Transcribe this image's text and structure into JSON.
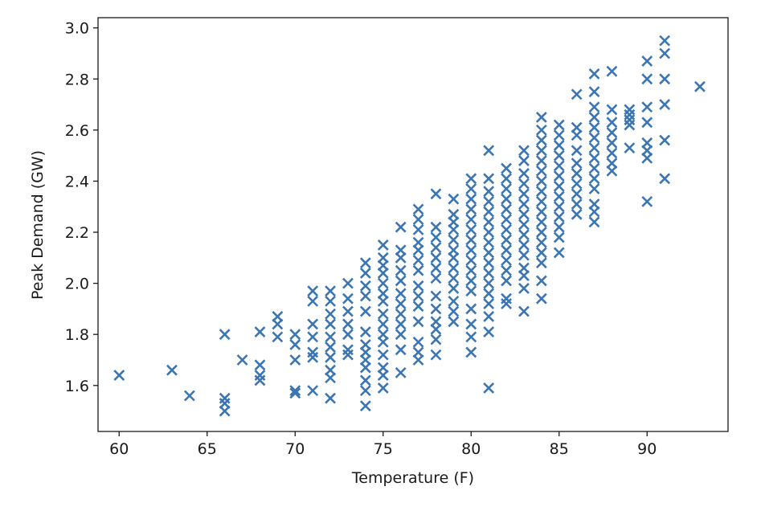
{
  "chart_data": {
    "type": "scatter",
    "title": "",
    "xlabel": "Temperature (F)",
    "ylabel": "Peak Demand (GW)",
    "xlim": [
      58.8,
      94.6
    ],
    "ylim": [
      1.42,
      3.04
    ],
    "xticks": [
      60,
      65,
      70,
      75,
      80,
      85,
      90
    ],
    "yticks": [
      1.6,
      1.8,
      2.0,
      2.2,
      2.4,
      2.6,
      2.8,
      3.0
    ],
    "xtick_labels": [
      "60",
      "65",
      "70",
      "75",
      "80",
      "85",
      "90"
    ],
    "ytick_labels": [
      "1.6",
      "1.8",
      "2.0",
      "2.2",
      "2.4",
      "2.6",
      "2.8",
      "3.0"
    ],
    "marker": "x",
    "color": "#3b76b3",
    "grid": false,
    "series": [
      {
        "points": [
          [
            60,
            1.64
          ],
          [
            63,
            1.66
          ],
          [
            64,
            1.56
          ],
          [
            66,
            1.8
          ],
          [
            66,
            1.55
          ],
          [
            66,
            1.53
          ],
          [
            66,
            1.5
          ],
          [
            67,
            1.7
          ],
          [
            68,
            1.81
          ],
          [
            68,
            1.68
          ],
          [
            68,
            1.64
          ],
          [
            68,
            1.62
          ],
          [
            69,
            1.87
          ],
          [
            69,
            1.84
          ],
          [
            69,
            1.79
          ],
          [
            70,
            1.8
          ],
          [
            70,
            1.76
          ],
          [
            70,
            1.7
          ],
          [
            70,
            1.58
          ],
          [
            70,
            1.57
          ],
          [
            71,
            1.97
          ],
          [
            71,
            1.93
          ],
          [
            71,
            1.84
          ],
          [
            71,
            1.79
          ],
          [
            71,
            1.73
          ],
          [
            71,
            1.71
          ],
          [
            71,
            1.58
          ],
          [
            72,
            1.97
          ],
          [
            72,
            1.93
          ],
          [
            72,
            1.88
          ],
          [
            72,
            1.84
          ],
          [
            72,
            1.79
          ],
          [
            72,
            1.75
          ],
          [
            72,
            1.71
          ],
          [
            72,
            1.66
          ],
          [
            72,
            1.63
          ],
          [
            72,
            1.55
          ],
          [
            73,
            2.0
          ],
          [
            73,
            1.94
          ],
          [
            73,
            1.89
          ],
          [
            73,
            1.84
          ],
          [
            73,
            1.8
          ],
          [
            73,
            1.74
          ],
          [
            73,
            1.72
          ],
          [
            74,
            2.08
          ],
          [
            74,
            2.04
          ],
          [
            74,
            1.99
          ],
          [
            74,
            1.95
          ],
          [
            74,
            1.89
          ],
          [
            74,
            1.81
          ],
          [
            74,
            1.76
          ],
          [
            74,
            1.73
          ],
          [
            74,
            1.7
          ],
          [
            74,
            1.67
          ],
          [
            74,
            1.62
          ],
          [
            74,
            1.58
          ],
          [
            74,
            1.52
          ],
          [
            75,
            2.15
          ],
          [
            75,
            2.1
          ],
          [
            75,
            2.07
          ],
          [
            75,
            2.04
          ],
          [
            75,
            2.0
          ],
          [
            75,
            1.96
          ],
          [
            75,
            1.93
          ],
          [
            75,
            1.88
          ],
          [
            75,
            1.84
          ],
          [
            75,
            1.8
          ],
          [
            75,
            1.77
          ],
          [
            75,
            1.72
          ],
          [
            75,
            1.67
          ],
          [
            75,
            1.64
          ],
          [
            75,
            1.59
          ],
          [
            76,
            2.22
          ],
          [
            76,
            2.13
          ],
          [
            76,
            2.1
          ],
          [
            76,
            2.05
          ],
          [
            76,
            2.01
          ],
          [
            76,
            1.96
          ],
          [
            76,
            1.92
          ],
          [
            76,
            1.88
          ],
          [
            76,
            1.84
          ],
          [
            76,
            1.8
          ],
          [
            76,
            1.74
          ],
          [
            76,
            1.65
          ],
          [
            77,
            2.29
          ],
          [
            77,
            2.25
          ],
          [
            77,
            2.21
          ],
          [
            77,
            2.16
          ],
          [
            77,
            2.13
          ],
          [
            77,
            2.09
          ],
          [
            77,
            2.05
          ],
          [
            77,
            1.99
          ],
          [
            77,
            1.95
          ],
          [
            77,
            1.91
          ],
          [
            77,
            1.85
          ],
          [
            77,
            1.77
          ],
          [
            77,
            1.73
          ],
          [
            77,
            1.7
          ],
          [
            78,
            2.35
          ],
          [
            78,
            2.22
          ],
          [
            78,
            2.18
          ],
          [
            78,
            2.14
          ],
          [
            78,
            2.1
          ],
          [
            78,
            2.06
          ],
          [
            78,
            2.02
          ],
          [
            78,
            1.95
          ],
          [
            78,
            1.9
          ],
          [
            78,
            1.85
          ],
          [
            78,
            1.82
          ],
          [
            78,
            1.78
          ],
          [
            78,
            1.72
          ],
          [
            79,
            2.33
          ],
          [
            79,
            2.27
          ],
          [
            79,
            2.24
          ],
          [
            79,
            2.21
          ],
          [
            79,
            2.17
          ],
          [
            79,
            2.13
          ],
          [
            79,
            2.1
          ],
          [
            79,
            2.06
          ],
          [
            79,
            2.02
          ],
          [
            79,
            1.98
          ],
          [
            79,
            1.93
          ],
          [
            79,
            1.89
          ],
          [
            79,
            1.85
          ],
          [
            80,
            2.41
          ],
          [
            80,
            2.37
          ],
          [
            80,
            2.33
          ],
          [
            80,
            2.29
          ],
          [
            80,
            2.25
          ],
          [
            80,
            2.21
          ],
          [
            80,
            2.17
          ],
          [
            80,
            2.13
          ],
          [
            80,
            2.09
          ],
          [
            80,
            2.05
          ],
          [
            80,
            2.01
          ],
          [
            80,
            1.97
          ],
          [
            80,
            1.9
          ],
          [
            80,
            1.84
          ],
          [
            80,
            1.79
          ],
          [
            80,
            1.73
          ],
          [
            81,
            2.52
          ],
          [
            81,
            2.41
          ],
          [
            81,
            2.36
          ],
          [
            81,
            2.32
          ],
          [
            81,
            2.28
          ],
          [
            81,
            2.24
          ],
          [
            81,
            2.2
          ],
          [
            81,
            2.16
          ],
          [
            81,
            2.12
          ],
          [
            81,
            2.08
          ],
          [
            81,
            2.04
          ],
          [
            81,
            2.0
          ],
          [
            81,
            1.96
          ],
          [
            81,
            1.92
          ],
          [
            81,
            1.87
          ],
          [
            81,
            1.81
          ],
          [
            81,
            1.59
          ],
          [
            82,
            2.45
          ],
          [
            82,
            2.41
          ],
          [
            82,
            2.37
          ],
          [
            82,
            2.33
          ],
          [
            82,
            2.29
          ],
          [
            82,
            2.25
          ],
          [
            82,
            2.21
          ],
          [
            82,
            2.17
          ],
          [
            82,
            2.13
          ],
          [
            82,
            2.09
          ],
          [
            82,
            2.05
          ],
          [
            82,
            2.01
          ],
          [
            82,
            1.94
          ],
          [
            82,
            1.92
          ],
          [
            83,
            2.52
          ],
          [
            83,
            2.48
          ],
          [
            83,
            2.43
          ],
          [
            83,
            2.39
          ],
          [
            83,
            2.35
          ],
          [
            83,
            2.31
          ],
          [
            83,
            2.27
          ],
          [
            83,
            2.23
          ],
          [
            83,
            2.19
          ],
          [
            83,
            2.15
          ],
          [
            83,
            2.11
          ],
          [
            83,
            2.06
          ],
          [
            83,
            2.03
          ],
          [
            83,
            1.98
          ],
          [
            83,
            1.89
          ],
          [
            84,
            2.65
          ],
          [
            84,
            2.6
          ],
          [
            84,
            2.56
          ],
          [
            84,
            2.52
          ],
          [
            84,
            2.48
          ],
          [
            84,
            2.44
          ],
          [
            84,
            2.4
          ],
          [
            84,
            2.36
          ],
          [
            84,
            2.32
          ],
          [
            84,
            2.28
          ],
          [
            84,
            2.24
          ],
          [
            84,
            2.2
          ],
          [
            84,
            2.16
          ],
          [
            84,
            2.12
          ],
          [
            84,
            2.08
          ],
          [
            84,
            2.01
          ],
          [
            84,
            1.94
          ],
          [
            85,
            2.62
          ],
          [
            85,
            2.58
          ],
          [
            85,
            2.54
          ],
          [
            85,
            2.5
          ],
          [
            85,
            2.46
          ],
          [
            85,
            2.42
          ],
          [
            85,
            2.38
          ],
          [
            85,
            2.34
          ],
          [
            85,
            2.3
          ],
          [
            85,
            2.26
          ],
          [
            85,
            2.22
          ],
          [
            85,
            2.18
          ],
          [
            85,
            2.12
          ],
          [
            86,
            2.74
          ],
          [
            86,
            2.61
          ],
          [
            86,
            2.58
          ],
          [
            86,
            2.52
          ],
          [
            86,
            2.47
          ],
          [
            86,
            2.43
          ],
          [
            86,
            2.39
          ],
          [
            86,
            2.35
          ],
          [
            86,
            2.31
          ],
          [
            86,
            2.27
          ],
          [
            87,
            2.82
          ],
          [
            87,
            2.75
          ],
          [
            87,
            2.69
          ],
          [
            87,
            2.65
          ],
          [
            87,
            2.61
          ],
          [
            87,
            2.57
          ],
          [
            87,
            2.53
          ],
          [
            87,
            2.49
          ],
          [
            87,
            2.45
          ],
          [
            87,
            2.41
          ],
          [
            87,
            2.37
          ],
          [
            87,
            2.31
          ],
          [
            87,
            2.28
          ],
          [
            87,
            2.24
          ],
          [
            88,
            2.83
          ],
          [
            88,
            2.68
          ],
          [
            88,
            2.63
          ],
          [
            88,
            2.59
          ],
          [
            88,
            2.55
          ],
          [
            88,
            2.51
          ],
          [
            88,
            2.47
          ],
          [
            88,
            2.44
          ],
          [
            89,
            2.68
          ],
          [
            89,
            2.66
          ],
          [
            89,
            2.64
          ],
          [
            89,
            2.62
          ],
          [
            89,
            2.53
          ],
          [
            90,
            2.87
          ],
          [
            90,
            2.8
          ],
          [
            90,
            2.69
          ],
          [
            90,
            2.63
          ],
          [
            90,
            2.55
          ],
          [
            90,
            2.52
          ],
          [
            90,
            2.49
          ],
          [
            90,
            2.32
          ],
          [
            91,
            2.95
          ],
          [
            91,
            2.9
          ],
          [
            91,
            2.8
          ],
          [
            91,
            2.7
          ],
          [
            91,
            2.56
          ],
          [
            91,
            2.41
          ],
          [
            93,
            2.77
          ]
        ]
      }
    ]
  }
}
